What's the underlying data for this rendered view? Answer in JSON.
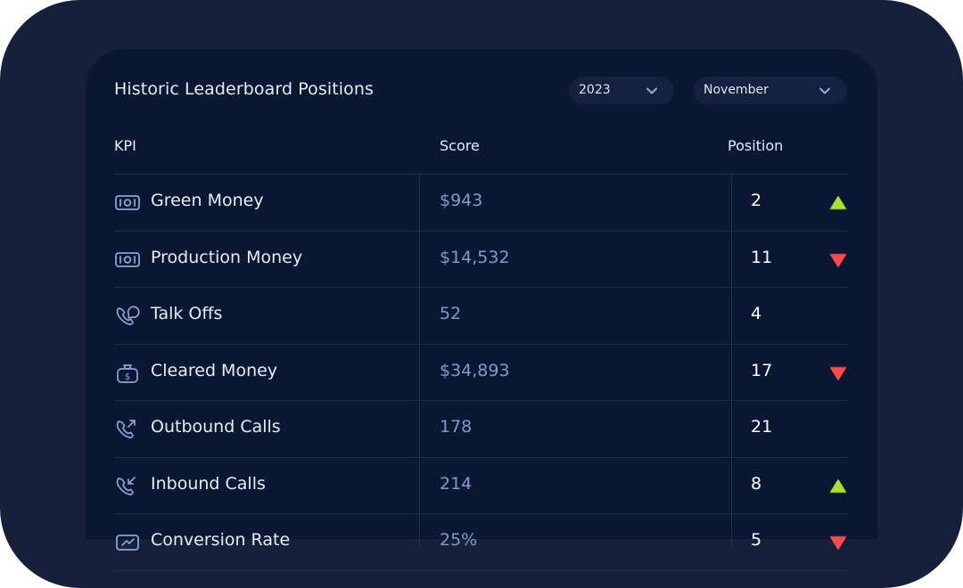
{
  "card": {
    "title": "Historic Leaderboard Positions",
    "year_select": {
      "value": "2023"
    },
    "month_select": {
      "value": "November"
    }
  },
  "table": {
    "columns": {
      "kpi": "KPI",
      "score": "Score",
      "position": "Position"
    },
    "rows": [
      {
        "kpi": "Green Money",
        "icon": "cash-icon",
        "score": "$943",
        "position": "2",
        "trend": "up"
      },
      {
        "kpi": "Production Money",
        "icon": "cash-icon",
        "score": "$14,532",
        "position": "11",
        "trend": "down"
      },
      {
        "kpi": "Talk Offs",
        "icon": "phone-chat-icon",
        "score": "52",
        "position": "4",
        "trend": "none"
      },
      {
        "kpi": "Cleared Money",
        "icon": "money-bag-icon",
        "score": "$34,893",
        "position": "17",
        "trend": "down"
      },
      {
        "kpi": "Outbound Calls",
        "icon": "outgoing-call-icon",
        "score": "178",
        "position": "21",
        "trend": "none"
      },
      {
        "kpi": "Inbound Calls",
        "icon": "incoming-call-icon",
        "score": "214",
        "position": "8",
        "trend": "up"
      },
      {
        "kpi": "Conversion Rate",
        "icon": "conversion-icon",
        "score": "25%",
        "position": "5",
        "trend": "down"
      }
    ]
  },
  "colors": {
    "trend_up": "#a6e22e",
    "trend_down": "#ff4a4a",
    "score_text": "#7f9cc7",
    "background": "#0c1733"
  }
}
